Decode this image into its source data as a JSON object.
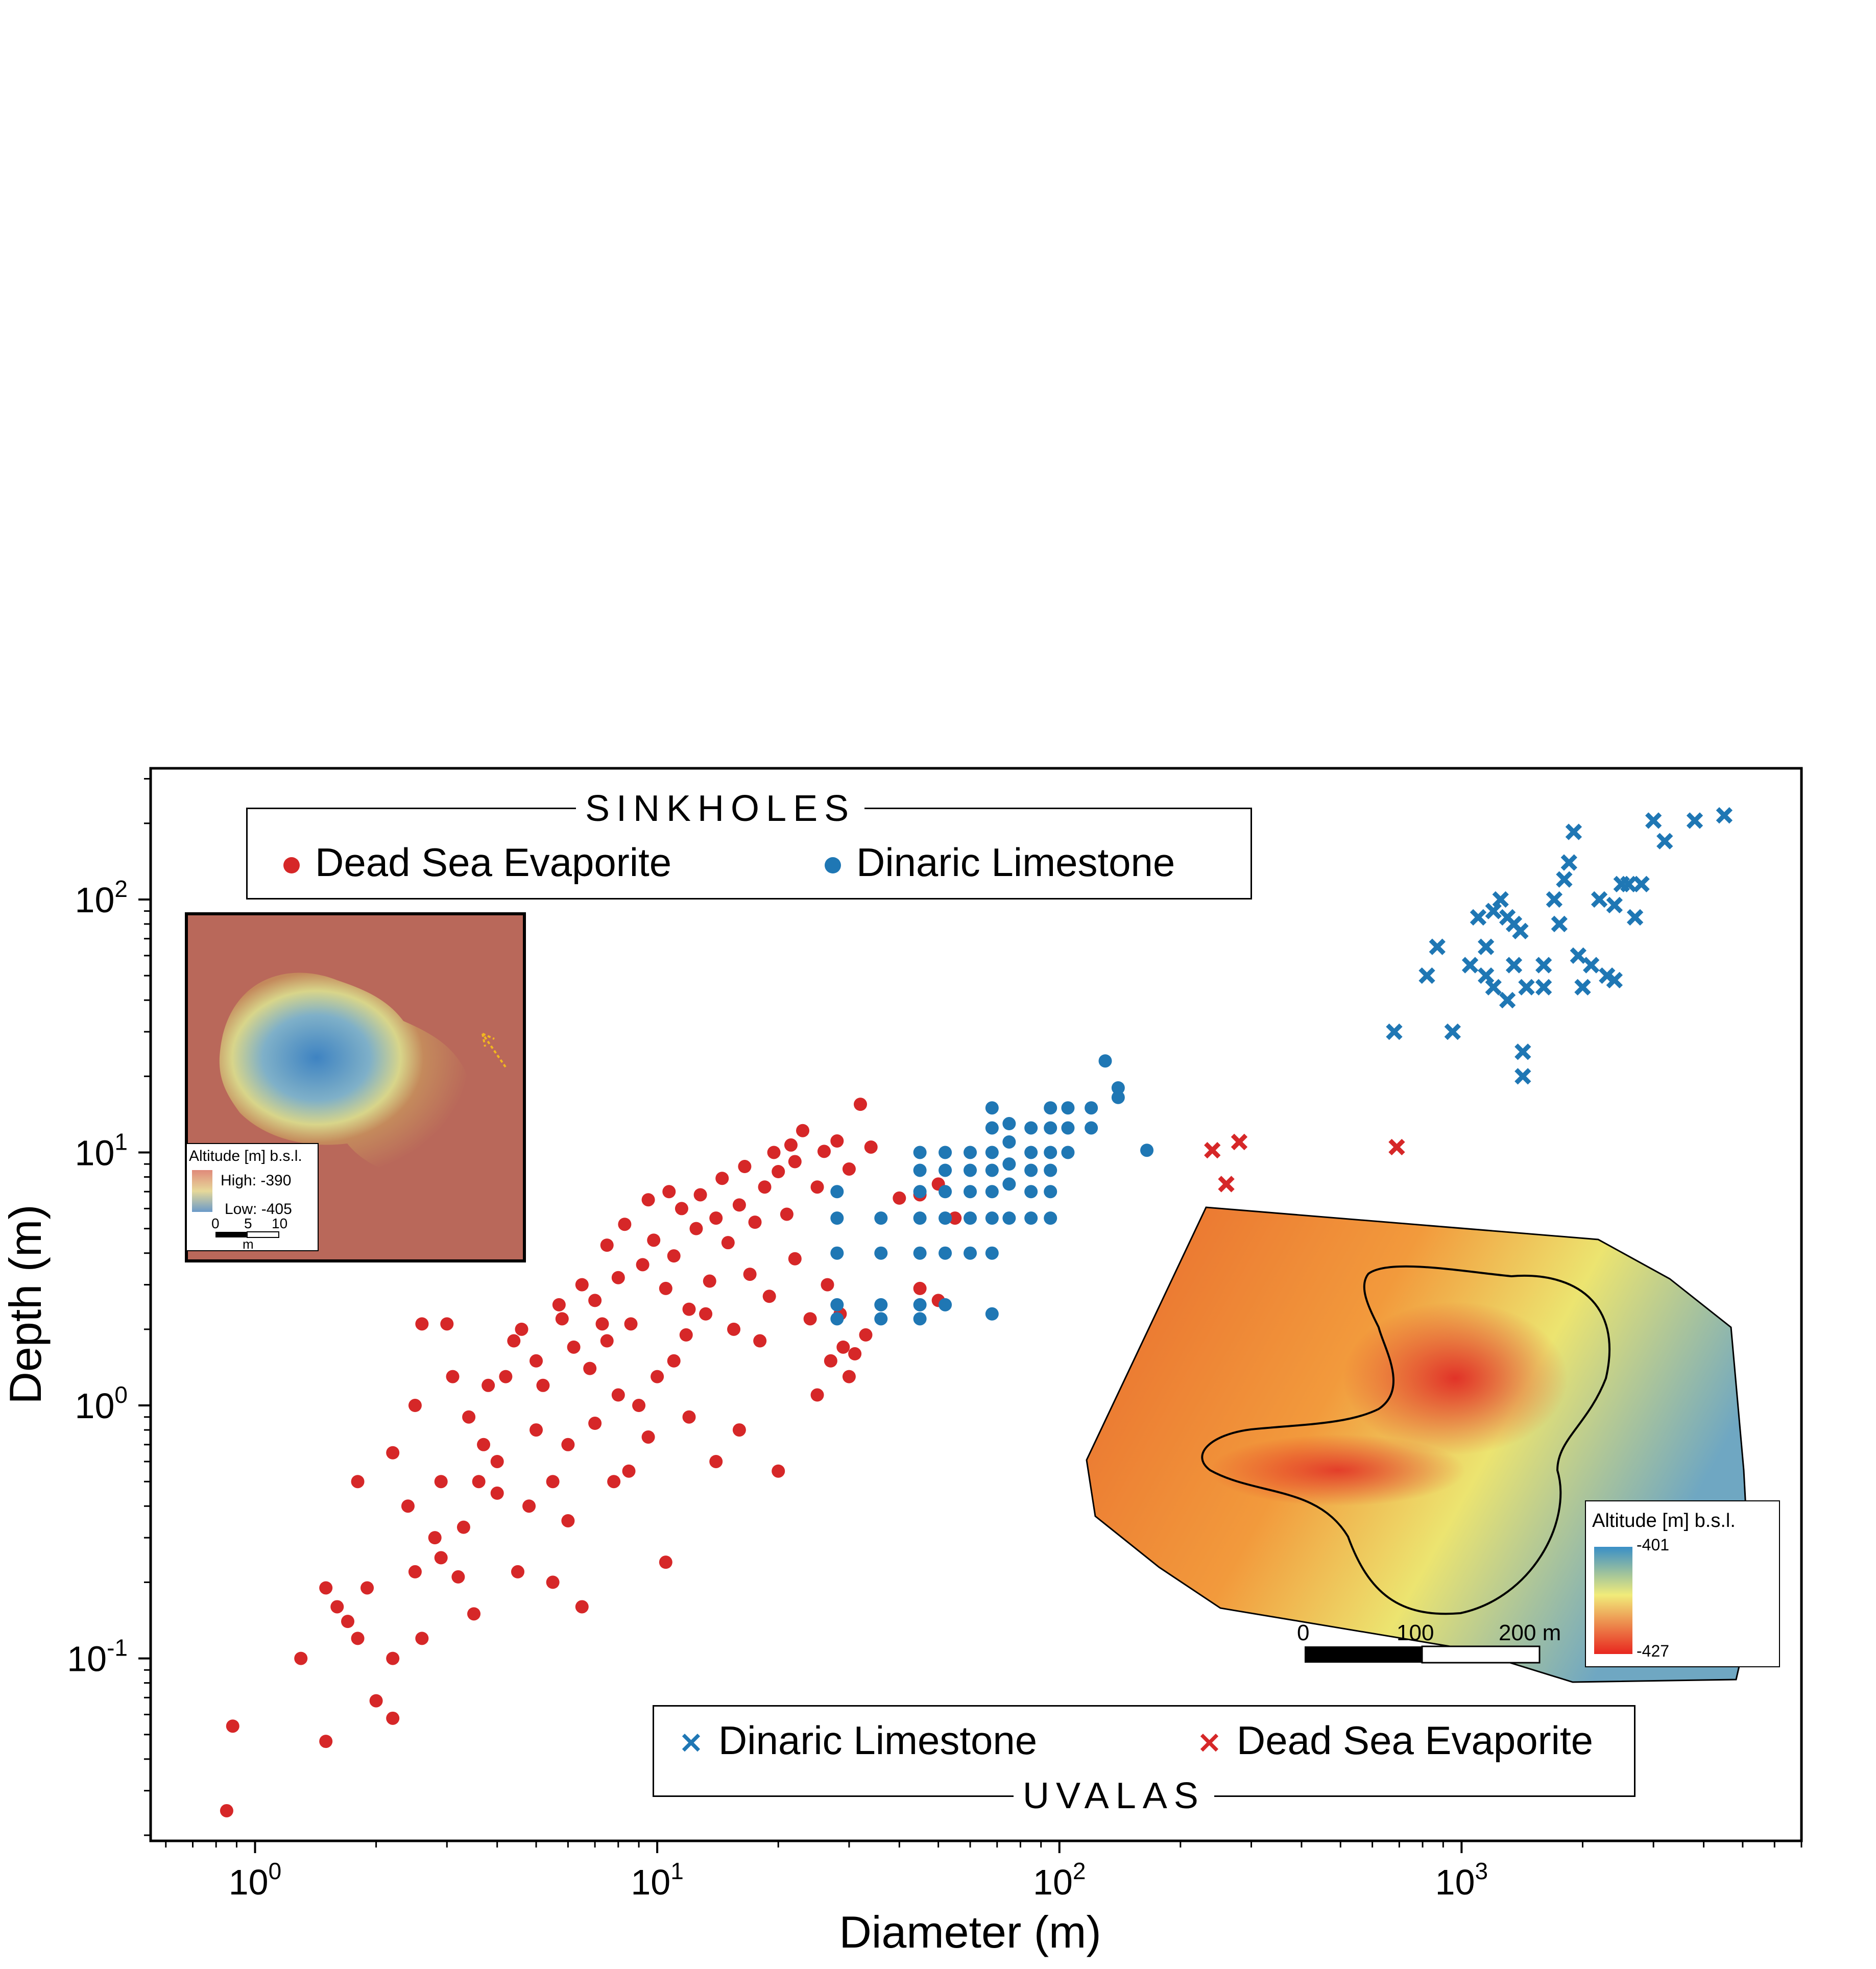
{
  "chart_data": {
    "type": "scatter",
    "xlabel": "Diameter (m)",
    "ylabel": "Depth (m)",
    "xscale": "log",
    "yscale": "log",
    "xlim": [
      0.55,
      7000
    ],
    "ylim": [
      0.019,
      330
    ],
    "xticks": [
      {
        "base": "10",
        "exp": "0",
        "value": 1
      },
      {
        "base": "10",
        "exp": "1",
        "value": 10
      },
      {
        "base": "10",
        "exp": "2",
        "value": 100
      },
      {
        "base": "10",
        "exp": "3",
        "value": 1000
      }
    ],
    "yticks": [
      {
        "base": "10",
        "exp": "-1",
        "value": 0.1
      },
      {
        "base": "10",
        "exp": "0",
        "value": 1
      },
      {
        "base": "10",
        "exp": "1",
        "value": 10
      },
      {
        "base": "10",
        "exp": "2",
        "value": 100
      }
    ],
    "legend_top": {
      "title": "SINKHOLES",
      "items": [
        {
          "label": "Dead Sea Evaporite",
          "color": "#d62728",
          "marker": "circle"
        },
        {
          "label": "Dinaric Limestone",
          "color": "#1f77b4",
          "marker": "circle"
        }
      ]
    },
    "legend_bottom": {
      "title": "UVALAS",
      "items": [
        {
          "label": "Dinaric Limestone",
          "color": "#1f77b4",
          "marker": "x"
        },
        {
          "label": "Dead Sea Evaporite",
          "color": "#d62728",
          "marker": "x"
        }
      ]
    },
    "series": [
      {
        "name": "Dead Sea Evaporite",
        "group": "SINKHOLES",
        "marker": "circle",
        "color": "#d62728",
        "points": [
          [
            0.85,
            0.025
          ],
          [
            0.88,
            0.054
          ],
          [
            1.5,
            0.047
          ],
          [
            2.2,
            0.058
          ],
          [
            2.0,
            0.068
          ],
          [
            1.3,
            0.1
          ],
          [
            2.2,
            0.1
          ],
          [
            1.8,
            0.12
          ],
          [
            2.6,
            0.12
          ],
          [
            3.5,
            0.15
          ],
          [
            1.7,
            0.14
          ],
          [
            1.5,
            0.19
          ],
          [
            1.6,
            0.16
          ],
          [
            1.9,
            0.19
          ],
          [
            2.5,
            0.22
          ],
          [
            3.2,
            0.21
          ],
          [
            4.5,
            0.22
          ],
          [
            5.5,
            0.2
          ],
          [
            6.5,
            0.16
          ],
          [
            10.5,
            0.24
          ],
          [
            1.8,
            0.5
          ],
          [
            2.2,
            0.65
          ],
          [
            2.5,
            1.0
          ],
          [
            2.6,
            2.1
          ],
          [
            3.0,
            2.1
          ],
          [
            3.1,
            1.3
          ],
          [
            3.4,
            0.9
          ],
          [
            3.8,
            1.2
          ],
          [
            4.2,
            1.3
          ],
          [
            3.7,
            0.7
          ],
          [
            2.9,
            0.5
          ],
          [
            4.6,
            2.0
          ],
          [
            5.0,
            1.5
          ],
          [
            5.8,
            2.2
          ],
          [
            6.2,
            1.7
          ],
          [
            7.0,
            2.6
          ],
          [
            7.5,
            1.8
          ],
          [
            8.0,
            3.2
          ],
          [
            8.6,
            2.1
          ],
          [
            9.2,
            3.6
          ],
          [
            9.8,
            4.5
          ],
          [
            10.5,
            2.9
          ],
          [
            11.0,
            3.9
          ],
          [
            12.5,
            5.0
          ],
          [
            12.0,
            2.4
          ],
          [
            13.5,
            3.1
          ],
          [
            14.0,
            5.5
          ],
          [
            15.0,
            4.4
          ],
          [
            16.0,
            6.2
          ],
          [
            17.5,
            5.3
          ],
          [
            18.5,
            7.3
          ],
          [
            20.0,
            8.4
          ],
          [
            21.0,
            5.7
          ],
          [
            22.0,
            9.2
          ],
          [
            23.0,
            12.2
          ],
          [
            25.0,
            7.3
          ],
          [
            26.0,
            10.1
          ],
          [
            28.0,
            11.1
          ],
          [
            30.0,
            8.6
          ],
          [
            32.0,
            15.5
          ],
          [
            34.0,
            10.5
          ],
          [
            40.0,
            6.6
          ],
          [
            45.0,
            6.8
          ],
          [
            50.0,
            7.5
          ],
          [
            55.0,
            5.5
          ],
          [
            45.0,
            2.9
          ],
          [
            50.0,
            2.6
          ],
          [
            30.0,
            1.3
          ],
          [
            25.0,
            1.1
          ],
          [
            20.0,
            0.55
          ],
          [
            16.0,
            0.8
          ],
          [
            14.0,
            0.6
          ],
          [
            12.0,
            0.9
          ],
          [
            4.0,
            0.6
          ],
          [
            5.0,
            0.8
          ],
          [
            6.0,
            0.7
          ],
          [
            7.0,
            0.85
          ],
          [
            8.0,
            1.1
          ],
          [
            9.0,
            1.0
          ],
          [
            10.0,
            1.3
          ],
          [
            11.0,
            1.5
          ],
          [
            6.5,
            3.0
          ],
          [
            7.5,
            4.3
          ],
          [
            8.3,
            5.2
          ],
          [
            9.5,
            6.5
          ],
          [
            10.7,
            7.0
          ],
          [
            11.5,
            6.0
          ],
          [
            12.8,
            6.8
          ],
          [
            14.5,
            7.9
          ],
          [
            16.5,
            8.8
          ],
          [
            19.5,
            10.0
          ],
          [
            21.5,
            10.7
          ],
          [
            17.0,
            3.3
          ],
          [
            19.0,
            2.7
          ],
          [
            22.0,
            3.8
          ],
          [
            24.0,
            2.2
          ],
          [
            26.5,
            3.0
          ],
          [
            28.5,
            2.3
          ],
          [
            31.0,
            1.6
          ],
          [
            33.0,
            1.9
          ],
          [
            27.0,
            1.5
          ],
          [
            29.0,
            1.7
          ],
          [
            3.3,
            0.33
          ],
          [
            4.0,
            0.45
          ],
          [
            4.8,
            0.4
          ],
          [
            5.5,
            0.5
          ],
          [
            6.0,
            0.35
          ],
          [
            2.8,
            0.3
          ],
          [
            3.6,
            0.5
          ],
          [
            8.5,
            0.55
          ],
          [
            9.5,
            0.75
          ],
          [
            7.8,
            0.5
          ],
          [
            2.4,
            0.4
          ],
          [
            2.9,
            0.25
          ],
          [
            5.2,
            1.2
          ],
          [
            6.8,
            1.4
          ],
          [
            4.4,
            1.8
          ],
          [
            5.7,
            2.5
          ],
          [
            7.3,
            2.1
          ],
          [
            11.8,
            1.9
          ],
          [
            13.2,
            2.3
          ],
          [
            15.5,
            2.0
          ],
          [
            18.0,
            1.8
          ]
        ]
      },
      {
        "name": "Dinaric Limestone",
        "group": "SINKHOLES",
        "marker": "circle",
        "color": "#1f77b4",
        "points": [
          [
            28,
            7.0
          ],
          [
            28,
            5.5
          ],
          [
            28,
            4.0
          ],
          [
            28,
            2.5
          ],
          [
            28,
            2.2
          ],
          [
            36,
            5.5
          ],
          [
            36,
            4.0
          ],
          [
            36,
            2.5
          ],
          [
            36,
            2.2
          ],
          [
            45,
            10.0
          ],
          [
            45,
            8.5
          ],
          [
            45,
            7.0
          ],
          [
            45,
            5.5
          ],
          [
            45,
            4.0
          ],
          [
            45,
            2.5
          ],
          [
            45,
            2.2
          ],
          [
            52,
            10.0
          ],
          [
            52,
            8.5
          ],
          [
            52,
            7.0
          ],
          [
            52,
            5.5
          ],
          [
            52,
            4.0
          ],
          [
            52,
            2.5
          ],
          [
            60,
            10.0
          ],
          [
            60,
            8.5
          ],
          [
            60,
            7.0
          ],
          [
            60,
            5.5
          ],
          [
            60,
            4.0
          ],
          [
            68,
            15.0
          ],
          [
            68,
            12.5
          ],
          [
            68,
            10.0
          ],
          [
            68,
            8.5
          ],
          [
            68,
            7.0
          ],
          [
            68,
            5.5
          ],
          [
            68,
            4.0
          ],
          [
            68,
            2.3
          ],
          [
            75,
            13.0
          ],
          [
            75,
            11.0
          ],
          [
            75,
            9.0
          ],
          [
            75,
            7.5
          ],
          [
            75,
            5.5
          ],
          [
            85,
            12.5
          ],
          [
            85,
            10.0
          ],
          [
            85,
            8.5
          ],
          [
            85,
            7.0
          ],
          [
            85,
            5.5
          ],
          [
            95,
            15.0
          ],
          [
            95,
            12.5
          ],
          [
            95,
            10.0
          ],
          [
            95,
            8.5
          ],
          [
            95,
            7.0
          ],
          [
            95,
            5.5
          ],
          [
            105,
            15.0
          ],
          [
            105,
            12.5
          ],
          [
            105,
            10.0
          ],
          [
            120,
            15.0
          ],
          [
            120,
            12.5
          ],
          [
            130,
            23.0
          ],
          [
            140,
            18.0
          ],
          [
            140,
            16.5
          ],
          [
            165,
            10.2
          ]
        ]
      },
      {
        "name": "Dinaric Limestone",
        "group": "UVALAS",
        "marker": "x",
        "color": "#1f77b4",
        "points": [
          [
            680,
            30
          ],
          [
            820,
            50
          ],
          [
            870,
            65
          ],
          [
            950,
            30
          ],
          [
            1050,
            55
          ],
          [
            1100,
            85
          ],
          [
            1150,
            65
          ],
          [
            1200,
            90
          ],
          [
            1250,
            100
          ],
          [
            1300,
            85
          ],
          [
            1350,
            80
          ],
          [
            1400,
            75
          ],
          [
            1420,
            25
          ],
          [
            1420,
            20
          ],
          [
            1450,
            45
          ],
          [
            1200,
            45
          ],
          [
            1150,
            50
          ],
          [
            1300,
            40
          ],
          [
            1350,
            55
          ],
          [
            1600,
            45
          ],
          [
            1700,
            100
          ],
          [
            1750,
            80
          ],
          [
            1800,
            120
          ],
          [
            1850,
            140
          ],
          [
            1900,
            185
          ],
          [
            1950,
            60
          ],
          [
            2000,
            45
          ],
          [
            2100,
            55
          ],
          [
            2200,
            100
          ],
          [
            2300,
            50
          ],
          [
            2400,
            95
          ],
          [
            2500,
            115
          ],
          [
            2600,
            115
          ],
          [
            2700,
            85
          ],
          [
            2800,
            115
          ],
          [
            3000,
            205
          ],
          [
            3200,
            170
          ],
          [
            3800,
            205
          ],
          [
            4500,
            215
          ],
          [
            1600,
            55
          ],
          [
            2400,
            48
          ]
        ]
      },
      {
        "name": "Dead Sea Evaporite",
        "group": "UVALAS",
        "marker": "x",
        "color": "#d62728",
        "points": [
          [
            240,
            10.2
          ],
          [
            280,
            11.0
          ],
          [
            260,
            7.5
          ],
          [
            690,
            10.5
          ]
        ]
      }
    ],
    "insets": [
      {
        "colorbar_title": "Altitude [m] b.s.l.",
        "high_label": "High: -390",
        "low_label": "Low: -405",
        "scalebar_ticks": [
          "0",
          "5",
          "10"
        ],
        "scalebar_unit": "m"
      },
      {
        "colorbar_title": "Altitude [m] b.s.l.",
        "max_label": "-401",
        "min_label": "-427",
        "scalebar_ticks": [
          "0",
          "100",
          "200 m"
        ]
      }
    ],
    "grid": false
  },
  "colors": {
    "red": "#d62728",
    "blue": "#1f77b4",
    "axis": "#000000"
  }
}
